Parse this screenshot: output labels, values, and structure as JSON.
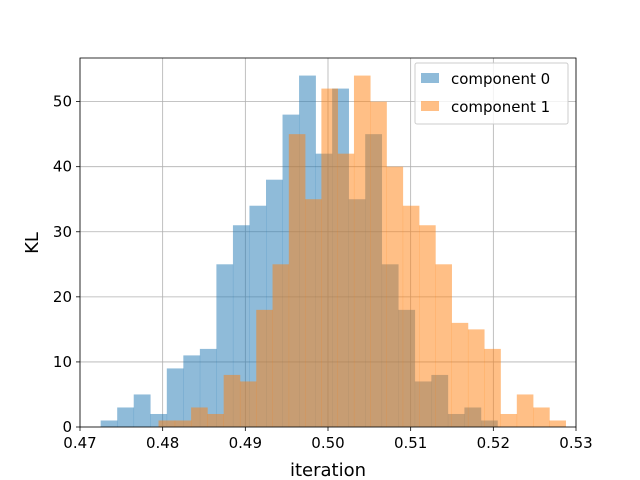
{
  "chart_data": {
    "type": "bar",
    "subtype": "overlapping histogram",
    "xlabel": "iteration",
    "ylabel": "KL",
    "xlim": [
      0.47,
      0.53
    ],
    "ylim": [
      0,
      56.7
    ],
    "xticks": [
      "0.47",
      "0.48",
      "0.49",
      "0.50",
      "0.51",
      "0.52",
      "0.53"
    ],
    "yticks": [
      "0",
      "10",
      "20",
      "30",
      "40",
      "50"
    ],
    "grid": true,
    "legend_position": "top-right",
    "series": [
      {
        "name": "component 0",
        "color": "#1f77b4",
        "opacity": 0.5,
        "bin_start": 0.4725,
        "bin_width": 0.002,
        "values": [
          1,
          3,
          5,
          2,
          9,
          11,
          12,
          25,
          31,
          34,
          38,
          48,
          54,
          42,
          52,
          35,
          45,
          25,
          18,
          7,
          8,
          2,
          3,
          1
        ]
      },
      {
        "name": "component 1",
        "color": "#ff7f0e",
        "opacity": 0.5,
        "bin_start": 0.4795,
        "bin_width": 0.00197,
        "values": [
          1,
          1,
          3,
          2,
          8,
          7,
          18,
          25,
          45,
          35,
          52,
          42,
          54,
          50,
          40,
          34,
          31,
          25,
          16,
          15,
          12,
          2,
          5,
          3,
          1
        ]
      }
    ]
  }
}
